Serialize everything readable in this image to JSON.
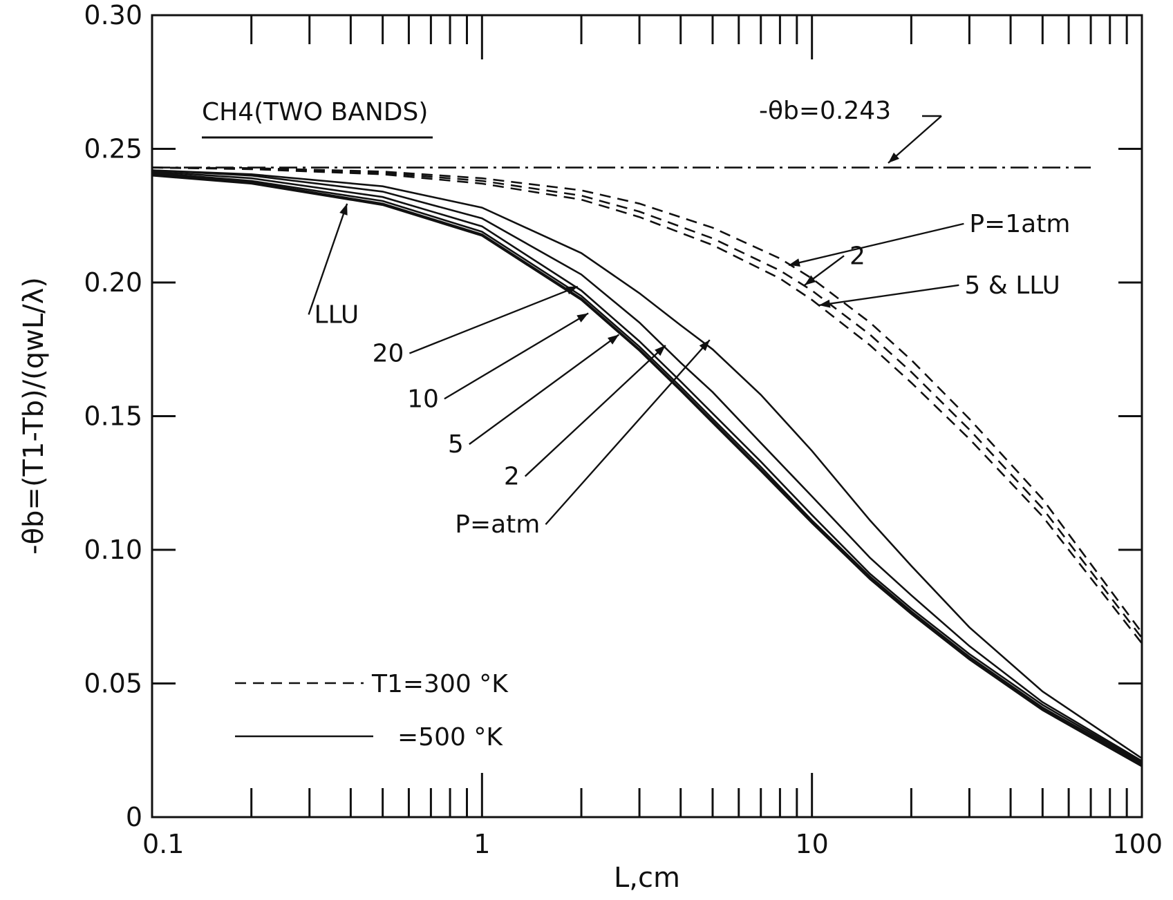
{
  "chart_data": {
    "type": "line",
    "xscale": "log",
    "xlim": [
      0.1,
      100
    ],
    "ylim": [
      0,
      0.3
    ],
    "xlabel": "L,cm",
    "ylabel": "-θb=(T1-Tb)/(qwL/λ)",
    "x_ticks": [
      {
        "value": 0.1,
        "label": "0.1"
      },
      {
        "value": 1,
        "label": "1"
      },
      {
        "value": 10,
        "label": "10"
      },
      {
        "value": 100,
        "label": "100"
      }
    ],
    "y_ticks": [
      {
        "value": 0,
        "label": "0"
      },
      {
        "value": 0.05,
        "label": "0.05"
      },
      {
        "value": 0.1,
        "label": "0.10"
      },
      {
        "value": 0.15,
        "label": "0.15"
      },
      {
        "value": 0.2,
        "label": "0.20"
      },
      {
        "value": 0.25,
        "label": "0.25"
      },
      {
        "value": 0.3,
        "label": "0.30"
      }
    ],
    "grid": false,
    "title_text": "CH4(TWO BANDS)",
    "limit_line": {
      "y": 0.243,
      "label": "-θb=0.243"
    },
    "legend": {
      "placement": "bottom-left",
      "dashed_label": "T1=300 °K",
      "solid_label": "=500 °K"
    },
    "series": [
      {
        "group": "T1=300 °K",
        "style": "dashed",
        "x": [
          0.1,
          0.2,
          0.5,
          1,
          2,
          3,
          5,
          8,
          10,
          15,
          20,
          30,
          50,
          100
        ],
        "y": [
          0.243,
          0.2428,
          0.2415,
          0.239,
          0.2345,
          0.2295,
          0.2205,
          0.209,
          0.2015,
          0.185,
          0.171,
          0.149,
          0.119,
          0.069
        ]
      },
      {
        "group": "T1=300 °K",
        "style": "dashed",
        "x": [
          0.1,
          0.2,
          0.5,
          1,
          2,
          3,
          5,
          8,
          10,
          15,
          20,
          30,
          50,
          100
        ],
        "y": [
          0.243,
          0.2426,
          0.241,
          0.238,
          0.2325,
          0.2265,
          0.2165,
          0.2045,
          0.197,
          0.1805,
          0.1665,
          0.145,
          0.1155,
          0.067
        ]
      },
      {
        "group": "T1=300 °K",
        "style": "dashed",
        "x": [
          0.1,
          0.2,
          0.5,
          1,
          2,
          3,
          5,
          8,
          10,
          15,
          20,
          30,
          50,
          100
        ],
        "y": [
          0.243,
          0.2424,
          0.2405,
          0.237,
          0.231,
          0.2245,
          0.214,
          0.2015,
          0.1935,
          0.1765,
          0.1625,
          0.1415,
          0.1125,
          0.065
        ]
      },
      {
        "group": "=500 °K",
        "style": "solid",
        "x": [
          0.1,
          0.2,
          0.5,
          1,
          2,
          3,
          4,
          5,
          7,
          10,
          15,
          20,
          30,
          50,
          100
        ],
        "y": [
          0.242,
          0.2405,
          0.236,
          0.228,
          0.211,
          0.196,
          0.184,
          0.175,
          0.158,
          0.137,
          0.111,
          0.094,
          0.071,
          0.047,
          0.022
        ]
      },
      {
        "group": "=500 °K",
        "style": "solid",
        "x": [
          0.1,
          0.2,
          0.5,
          1,
          2,
          3,
          4,
          5,
          7,
          10,
          15,
          20,
          30,
          50,
          100
        ],
        "y": [
          0.242,
          0.24,
          0.234,
          0.224,
          0.203,
          0.185,
          0.17,
          0.159,
          0.14,
          0.12,
          0.097,
          0.083,
          0.064,
          0.043,
          0.021
        ]
      },
      {
        "group": "=500 °K",
        "style": "solid",
        "x": [
          0.1,
          0.2,
          0.5,
          1,
          2,
          3,
          4,
          5,
          7,
          10,
          15,
          20,
          30,
          50,
          100
        ],
        "y": [
          0.2415,
          0.239,
          0.232,
          0.221,
          0.197,
          0.178,
          0.163,
          0.151,
          0.133,
          0.113,
          0.091,
          0.078,
          0.061,
          0.042,
          0.0205
        ]
      },
      {
        "group": "=500 °K",
        "style": "solid",
        "x": [
          0.1,
          0.2,
          0.5,
          1,
          2,
          3,
          4,
          5,
          7,
          10,
          15,
          20,
          30,
          50,
          100
        ],
        "y": [
          0.241,
          0.238,
          0.2305,
          0.219,
          0.195,
          0.176,
          0.161,
          0.149,
          0.131,
          0.111,
          0.09,
          0.077,
          0.06,
          0.041,
          0.02
        ]
      },
      {
        "group": "=500 °K",
        "style": "solid",
        "x": [
          0.1,
          0.2,
          0.5,
          1,
          2,
          3,
          4,
          5,
          7,
          10,
          15,
          20,
          30,
          50,
          100
        ],
        "y": [
          0.2405,
          0.2375,
          0.2295,
          0.218,
          0.194,
          0.175,
          0.16,
          0.148,
          0.13,
          0.1105,
          0.0895,
          0.0765,
          0.0595,
          0.0405,
          0.0195
        ]
      },
      {
        "group": "=500 °K",
        "style": "solid",
        "x": [
          0.1,
          0.2,
          0.5,
          1,
          2,
          3,
          4,
          5,
          7,
          10,
          15,
          20,
          30,
          50,
          100
        ],
        "y": [
          0.24,
          0.237,
          0.229,
          0.2175,
          0.1935,
          0.1745,
          0.1595,
          0.1475,
          0.1295,
          0.11,
          0.089,
          0.076,
          0.059,
          0.04,
          0.019
        ]
      }
    ],
    "annotations": [
      {
        "text": "P=1atm",
        "x": 30,
        "y": 0.222,
        "anchor": "start",
        "arrow_to": {
          "x": 8.5,
          "y": 0.2065
        }
      },
      {
        "text": "2",
        "x": 13,
        "y": 0.21,
        "anchor": "start",
        "arrow_to": {
          "x": 9.5,
          "y": 0.199
        }
      },
      {
        "text": "5 & LLU",
        "x": 29,
        "y": 0.199,
        "anchor": "start",
        "arrow_to": {
          "x": 10.5,
          "y": 0.1915
        }
      },
      {
        "text": "LLU",
        "x": 0.31,
        "y": 0.188,
        "anchor": "start",
        "arrow_to": {
          "x": 0.39,
          "y": 0.2295
        }
      },
      {
        "text": "20",
        "x": 0.58,
        "y": 0.1735,
        "anchor": "end",
        "arrow_to": {
          "x": 1.95,
          "y": 0.1985
        }
      },
      {
        "text": "10",
        "x": 0.74,
        "y": 0.1565,
        "anchor": "end",
        "arrow_to": {
          "x": 2.1,
          "y": 0.1885
        }
      },
      {
        "text": "5",
        "x": 0.88,
        "y": 0.1395,
        "anchor": "end",
        "arrow_to": {
          "x": 2.6,
          "y": 0.1805
        }
      },
      {
        "text": "2",
        "x": 1.3,
        "y": 0.1275,
        "anchor": "end",
        "arrow_to": {
          "x": 3.6,
          "y": 0.1765
        }
      },
      {
        "text": "P=atm",
        "x": 1.5,
        "y": 0.1095,
        "anchor": "end",
        "arrow_to": {
          "x": 4.9,
          "y": 0.1785
        }
      }
    ]
  }
}
